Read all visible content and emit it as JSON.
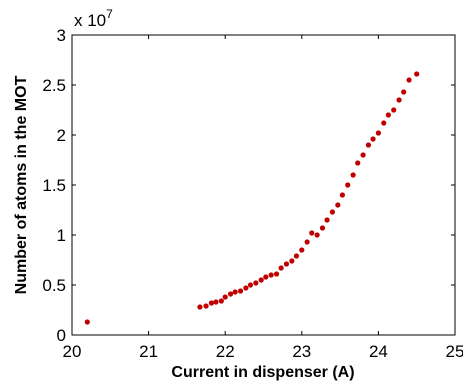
{
  "chart_data": {
    "type": "scatter",
    "title": "",
    "xlabel": "Current in dispenser (A)",
    "ylabel": "Number of atoms in the MOT",
    "xlim": [
      20,
      25
    ],
    "ylim": [
      0,
      3
    ],
    "xticks": [
      "20",
      "21",
      "22",
      "23",
      "24",
      "25"
    ],
    "yticks": [
      "0",
      "0.5",
      "1",
      "1.5",
      "2",
      "2.5",
      "3"
    ],
    "y_multiplier_base": "x 10",
    "y_multiplier_exponent": "7",
    "grid": false,
    "marker_color": "#c00000",
    "series": [
      {
        "x": [
          20.2,
          21.67,
          21.75,
          21.82,
          21.88,
          21.95,
          22.0,
          22.07,
          22.13,
          22.2,
          22.27,
          22.33,
          22.4,
          22.47,
          22.53,
          22.6,
          22.67,
          22.73,
          22.8,
          22.87,
          22.93,
          23.0,
          23.07,
          23.13,
          23.2,
          23.27,
          23.33,
          23.4,
          23.47,
          23.53,
          23.6,
          23.67,
          23.73,
          23.8,
          23.87,
          23.93,
          24.0,
          24.07,
          24.13,
          24.2,
          24.27,
          24.33,
          24.4,
          24.5
        ],
        "y": [
          0.13,
          0.28,
          0.29,
          0.32,
          0.33,
          0.34,
          0.38,
          0.41,
          0.43,
          0.44,
          0.47,
          0.5,
          0.52,
          0.55,
          0.58,
          0.6,
          0.61,
          0.67,
          0.71,
          0.74,
          0.79,
          0.85,
          0.93,
          1.02,
          1.0,
          1.07,
          1.15,
          1.23,
          1.3,
          1.4,
          1.5,
          1.6,
          1.72,
          1.8,
          1.9,
          1.96,
          2.02,
          2.12,
          2.2,
          2.25,
          2.35,
          2.43,
          2.55,
          2.61
        ]
      }
    ]
  }
}
